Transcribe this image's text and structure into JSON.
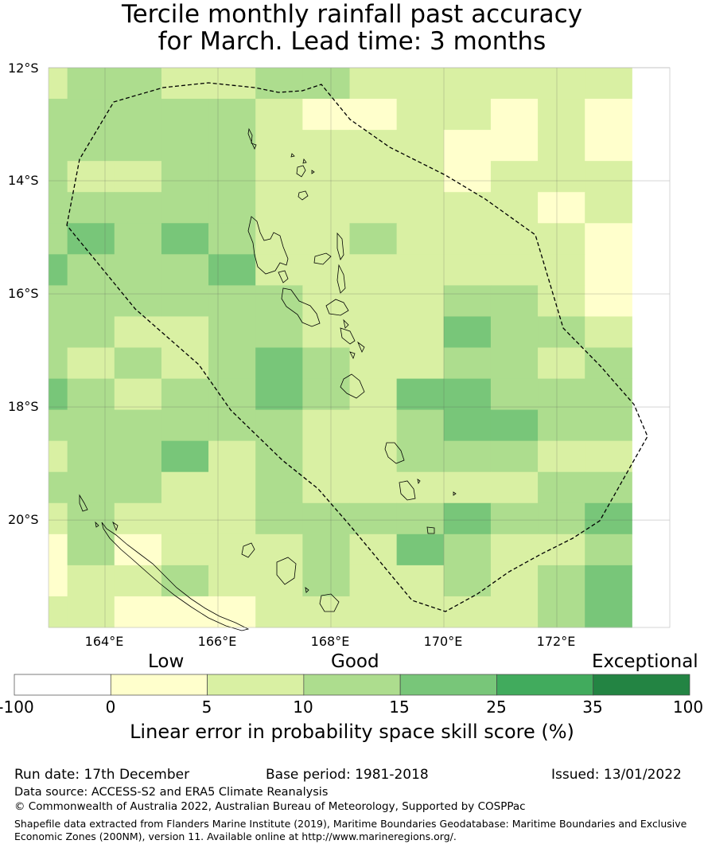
{
  "title": {
    "line1": "Tercile monthly rainfall past accuracy",
    "line2": "for March. Lead time: 3 months"
  },
  "map": {
    "lat_labels": [
      "12°S",
      "14°S",
      "16°S",
      "18°S",
      "20°S"
    ],
    "lon_labels": [
      "164°E",
      "166°E",
      "168°E",
      "170°E",
      "172°E"
    ],
    "lon_range": [
      163.0,
      174.0
    ],
    "lat_range": [
      -21.9,
      -12.0
    ],
    "cell_size_deg": 0.833,
    "grid_legend_indices": [
      [
        1,
        2,
        2,
        1,
        1,
        2,
        2,
        1,
        1,
        1,
        1,
        1,
        1
      ],
      [
        2,
        2,
        2,
        2,
        2,
        1,
        0,
        0,
        1,
        1,
        0,
        1,
        0
      ],
      [
        2,
        2,
        2,
        2,
        2,
        1,
        1,
        1,
        1,
        0,
        0,
        1,
        0
      ],
      [
        2,
        1,
        1,
        2,
        2,
        1,
        1,
        1,
        1,
        0,
        1,
        1,
        1
      ],
      [
        2,
        2,
        2,
        2,
        2,
        1,
        1,
        1,
        1,
        1,
        1,
        0,
        1
      ],
      [
        2,
        3,
        2,
        3,
        2,
        1,
        1,
        2,
        1,
        1,
        1,
        1,
        0
      ],
      [
        3,
        2,
        2,
        2,
        3,
        1,
        1,
        1,
        1,
        1,
        1,
        1,
        0
      ],
      [
        2,
        2,
        2,
        2,
        2,
        2,
        1,
        1,
        1,
        2,
        2,
        1,
        0
      ],
      [
        2,
        2,
        1,
        1,
        2,
        2,
        1,
        1,
        1,
        3,
        2,
        2,
        1
      ],
      [
        2,
        1,
        2,
        1,
        2,
        3,
        2,
        1,
        1,
        2,
        2,
        1,
        2
      ],
      [
        3,
        2,
        1,
        2,
        2,
        3,
        2,
        1,
        3,
        3,
        2,
        2,
        2
      ],
      [
        2,
        2,
        2,
        2,
        2,
        2,
        1,
        1,
        2,
        3,
        3,
        2,
        2
      ],
      [
        1,
        2,
        2,
        3,
        1,
        2,
        1,
        1,
        2,
        2,
        2,
        1,
        1
      ],
      [
        2,
        2,
        2,
        1,
        1,
        2,
        1,
        1,
        1,
        1,
        1,
        2,
        2
      ],
      [
        1,
        2,
        1,
        1,
        1,
        2,
        2,
        2,
        2,
        3,
        2,
        2,
        3
      ],
      [
        0,
        2,
        0,
        1,
        1,
        1,
        2,
        1,
        3,
        2,
        1,
        1,
        2
      ],
      [
        0,
        1,
        1,
        2,
        1,
        1,
        2,
        1,
        1,
        2,
        1,
        2,
        3
      ],
      [
        1,
        1,
        0,
        0,
        0,
        1,
        1,
        1,
        1,
        1,
        1,
        2,
        3
      ]
    ],
    "colors": {
      "legend": [
        "#ffffff",
        "#ffffcc",
        "#d9f0a3",
        "#addd8e",
        "#78c679",
        "#41ab5d",
        "#238443"
      ]
    },
    "grid_lines": true,
    "eez_boundary": "dashed"
  },
  "colorbar": {
    "words": {
      "low": "Low",
      "good": "Good",
      "exceptional": "Exceptional"
    },
    "ticks": [
      "-100",
      "0",
      "5",
      "10",
      "15",
      "25",
      "35",
      "100"
    ],
    "label": "Linear error in probability space skill score (%)"
  },
  "footer": {
    "run_date": "Run date: 17th December",
    "base_period": "Base period: 1981-2018",
    "issued": "Issued: 13/01/2022",
    "data_source": "Data source: ACCESS-S2 and ERA5 Climate Reanalysis",
    "copyright": "© Commonwealth of Australia 2022, Australian Bureau of Meteorology, Supported by COSPPac",
    "shapefile_line1": "Shapefile data extracted from Flanders Marine Institute (2019), Maritime Boundaries Geodatabase: Maritime Boundaries and Exclusive",
    "shapefile_line2": "Economic Zones (200NM), version 11. Available online at http://www.marineregions.org/."
  }
}
